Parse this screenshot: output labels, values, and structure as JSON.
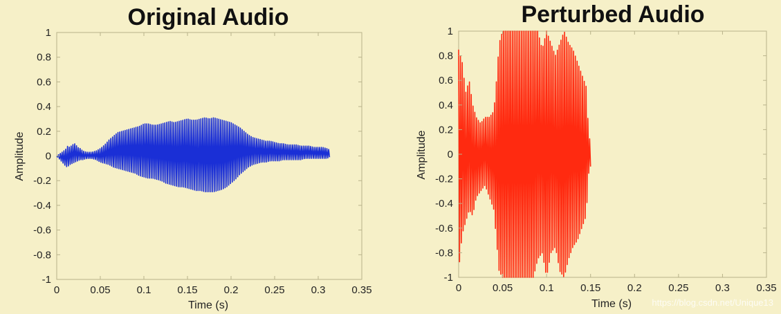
{
  "chart_data": [
    {
      "type": "line",
      "title": "Original Audio",
      "xlabel": "Time (s)",
      "ylabel": "Amplitude",
      "xlim": [
        0,
        0.35
      ],
      "ylim": [
        -1,
        1
      ],
      "xticks": [
        0,
        0.05,
        0.1,
        0.15,
        0.2,
        0.25,
        0.3,
        0.35
      ],
      "xtick_labels": [
        "0",
        "0.05",
        "0.1",
        "0.15",
        "0.2",
        "0.25",
        "0.3",
        "0.35"
      ],
      "yticks": [
        1,
        0.8,
        0.6,
        0.4,
        0.2,
        0,
        -0.2,
        -0.4,
        -0.6,
        -0.8,
        -1
      ],
      "ytick_labels": [
        "1",
        "0.8",
        "0.6",
        "0.4",
        "0.2",
        "0",
        "-0.2",
        "-0.4",
        "-0.6",
        "-0.8",
        "-1"
      ],
      "grid": false,
      "color": "#1a2fd6",
      "series": [
        {
          "x": [
            0,
            0.01,
            0.012,
            0.015,
            0.018,
            0.021,
            0.024,
            0.027,
            0.03,
            0.035,
            0.04,
            0.045,
            0.05,
            0.055,
            0.06,
            0.065,
            0.07,
            0.075,
            0.08,
            0.085,
            0.09,
            0.095,
            0.1,
            0.105,
            0.11,
            0.115,
            0.12,
            0.125,
            0.13,
            0.135,
            0.14,
            0.145,
            0.15,
            0.155,
            0.16,
            0.165,
            0.17,
            0.175,
            0.18,
            0.185,
            0.19,
            0.195,
            0.2,
            0.205,
            0.21,
            0.215,
            0.22,
            0.225,
            0.23,
            0.235,
            0.24,
            0.245,
            0.25,
            0.255,
            0.26,
            0.265,
            0.27,
            0.275,
            0.28,
            0.285,
            0.29,
            0.295,
            0.3,
            0.305,
            0.31,
            0.313
          ],
          "upper": [
            0,
            0.05,
            0.08,
            0.07,
            0.09,
            0.1,
            0.07,
            0.06,
            0.04,
            0.03,
            0.03,
            0.04,
            0.06,
            0.09,
            0.13,
            0.16,
            0.19,
            0.2,
            0.21,
            0.22,
            0.23,
            0.24,
            0.26,
            0.26,
            0.25,
            0.25,
            0.26,
            0.27,
            0.28,
            0.27,
            0.28,
            0.29,
            0.3,
            0.29,
            0.29,
            0.3,
            0.31,
            0.3,
            0.31,
            0.3,
            0.29,
            0.28,
            0.27,
            0.25,
            0.23,
            0.2,
            0.17,
            0.15,
            0.14,
            0.13,
            0.12,
            0.12,
            0.11,
            0.1,
            0.1,
            0.09,
            0.09,
            0.09,
            0.08,
            0.08,
            0.08,
            0.07,
            0.07,
            0.07,
            0.06,
            0.05
          ],
          "lower": [
            0,
            -0.08,
            -0.09,
            -0.07,
            -0.06,
            -0.05,
            -0.04,
            -0.03,
            -0.03,
            -0.02,
            -0.02,
            -0.03,
            -0.05,
            -0.06,
            -0.07,
            -0.09,
            -0.1,
            -0.11,
            -0.12,
            -0.13,
            -0.14,
            -0.16,
            -0.17,
            -0.18,
            -0.18,
            -0.19,
            -0.2,
            -0.22,
            -0.23,
            -0.24,
            -0.25,
            -0.25,
            -0.26,
            -0.27,
            -0.28,
            -0.28,
            -0.29,
            -0.29,
            -0.29,
            -0.28,
            -0.27,
            -0.25,
            -0.22,
            -0.19,
            -0.15,
            -0.12,
            -0.09,
            -0.07,
            -0.06,
            -0.05,
            -0.05,
            -0.04,
            -0.04,
            -0.04,
            -0.03,
            -0.03,
            -0.03,
            -0.03,
            -0.03,
            -0.02,
            -0.02,
            -0.02,
            -0.02,
            -0.02,
            -0.02,
            -0.01
          ]
        }
      ]
    },
    {
      "type": "line",
      "title": "Perturbed Audio",
      "xlabel": "Time (s)",
      "ylabel": "Amplitude",
      "xlim": [
        0,
        0.35
      ],
      "ylim": [
        -1,
        1
      ],
      "xticks": [
        0,
        0.05,
        0.1,
        0.15,
        0.2,
        0.25,
        0.3,
        0.35
      ],
      "xtick_labels": [
        "0",
        "0.05",
        "0.1",
        "0.15",
        "0.2",
        "0.25",
        "0.3",
        "0.35"
      ],
      "yticks": [
        1,
        0.8,
        0.6,
        0.4,
        0.2,
        0,
        -0.2,
        -0.4,
        -0.6,
        -0.8,
        -1
      ],
      "ytick_labels": [
        "1",
        "0.8",
        "0.6",
        "0.4",
        "0.2",
        "0",
        "-0.2",
        "-0.4",
        "-0.6",
        "-0.8",
        "-1"
      ],
      "grid": false,
      "color": "#ff2a10",
      "series": [
        {
          "x": [
            0,
            0.004,
            0.008,
            0.012,
            0.016,
            0.02,
            0.025,
            0.03,
            0.035,
            0.04,
            0.043,
            0.046,
            0.05,
            0.055,
            0.06,
            0.065,
            0.07,
            0.075,
            0.08,
            0.085,
            0.09,
            0.095,
            0.1,
            0.105,
            0.11,
            0.115,
            0.12,
            0.125,
            0.13,
            0.135,
            0.14,
            0.145,
            0.148,
            0.15
          ],
          "upper": [
            0.85,
            0.75,
            0.5,
            0.6,
            0.4,
            0.3,
            0.25,
            0.3,
            0.3,
            0.35,
            0.6,
            0.9,
            1,
            1,
            1,
            1,
            1,
            1,
            1,
            1,
            1,
            0.85,
            1,
            0.9,
            0.8,
            0.9,
            1,
            0.9,
            0.85,
            0.75,
            0.65,
            0.55,
            0.15,
            0.1
          ],
          "lower": [
            -0.95,
            -0.65,
            -0.55,
            -0.45,
            -0.5,
            -0.35,
            -0.3,
            -0.25,
            -0.35,
            -0.45,
            -0.7,
            -0.95,
            -1,
            -1,
            -1,
            -1,
            -1,
            -1,
            -1,
            -1,
            -0.85,
            -0.8,
            -1,
            -0.8,
            -0.75,
            -0.95,
            -1,
            -0.85,
            -0.75,
            -0.7,
            -0.6,
            -0.5,
            -0.15,
            -0.1
          ]
        }
      ]
    }
  ],
  "watermark": "https://blog.csdn.net/Unique13"
}
